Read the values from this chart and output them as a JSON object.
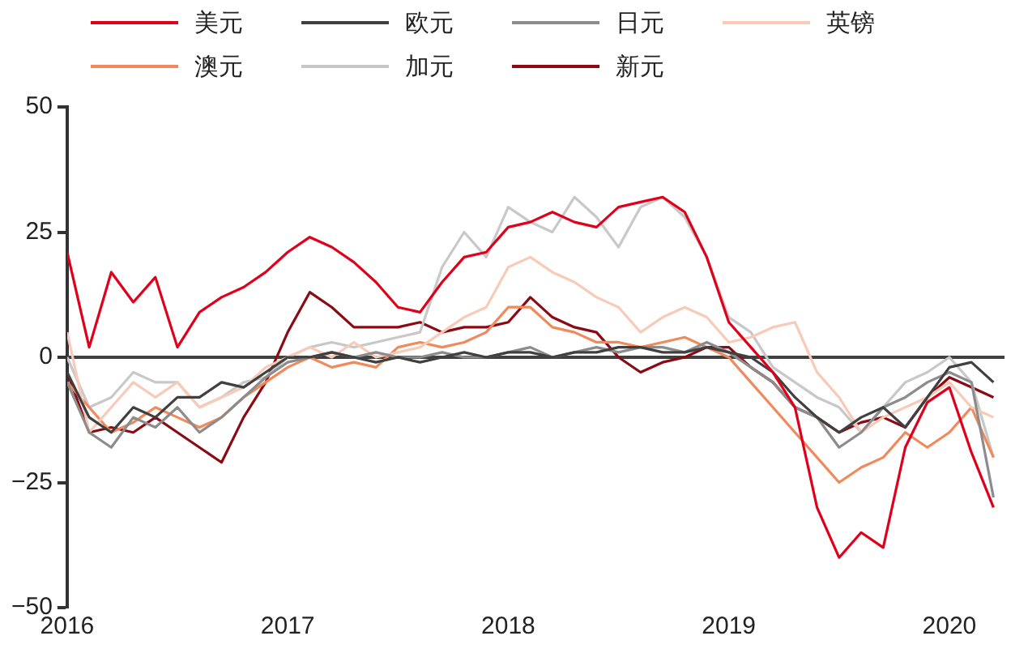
{
  "chart_data": {
    "type": "line",
    "legend": "top",
    "grid": false,
    "marker": "none",
    "line_style": "solid",
    "x": [
      2016.0,
      2016.1,
      2016.2,
      2016.3,
      2016.4,
      2016.5,
      2016.6,
      2016.7,
      2016.8,
      2016.9,
      2017.0,
      2017.1,
      2017.2,
      2017.3,
      2017.4,
      2017.5,
      2017.6,
      2017.7,
      2017.8,
      2017.9,
      2018.0,
      2018.1,
      2018.2,
      2018.3,
      2018.4,
      2018.5,
      2018.6,
      2018.7,
      2018.8,
      2018.9,
      2019.0,
      2019.1,
      2019.2,
      2019.3,
      2019.4,
      2019.5,
      2019.6,
      2019.7,
      2019.8,
      2019.9,
      2020.0,
      2020.1,
      2020.2
    ],
    "xlim": [
      2016,
      2020.25
    ],
    "xticks": [
      2016,
      2017,
      2018,
      2019,
      2020
    ],
    "ylim": [
      -50,
      50
    ],
    "yticks": [
      {
        "value": -50,
        "label": "−50"
      },
      {
        "value": -25,
        "label": "−25"
      },
      0,
      25,
      50
    ],
    "ref_lines": [
      {
        "axis": "y",
        "value": 0,
        "color": "#404040"
      }
    ],
    "series": [
      {
        "name": "美元",
        "color": "#e0001b",
        "values": [
          21,
          2,
          17,
          11,
          16,
          2,
          9,
          12,
          14,
          17,
          21,
          24,
          22,
          19,
          15,
          10,
          9,
          15,
          20,
          21,
          26,
          27,
          29,
          27,
          26,
          30,
          31,
          32,
          29,
          20,
          7,
          2,
          -3,
          -10,
          -30,
          -40,
          -35,
          -38,
          -18,
          -9,
          -6,
          -19,
          -30
        ]
      },
      {
        "name": "欧元",
        "color": "#404040",
        "values": [
          -3,
          -12,
          -15,
          -10,
          -12,
          -8,
          -8,
          -5,
          -6,
          -3,
          0,
          0,
          1,
          0,
          -1,
          0,
          -1,
          0,
          1,
          0,
          1,
          1,
          0,
          1,
          1,
          2,
          2,
          1,
          1,
          2,
          1,
          0,
          -3,
          -8,
          -12,
          -15,
          -12,
          -10,
          -14,
          -8,
          -2,
          -1,
          -5
        ]
      },
      {
        "name": "日元",
        "color": "#8c8c8c",
        "values": [
          -5,
          -15,
          -18,
          -12,
          -14,
          -10,
          -15,
          -12,
          -8,
          -4,
          -1,
          0,
          1,
          0,
          1,
          0,
          0,
          1,
          0,
          0,
          1,
          2,
          0,
          1,
          2,
          1,
          2,
          2,
          1,
          3,
          1,
          -2,
          -5,
          -10,
          -12,
          -18,
          -15,
          -10,
          -8,
          -5,
          -3,
          -5,
          -28
        ]
      },
      {
        "name": "英镑",
        "color": "#f8cbb8",
        "values": [
          5,
          -15,
          -10,
          -5,
          -8,
          -5,
          -10,
          -8,
          -6,
          -2,
          0,
          2,
          0,
          3,
          0,
          1,
          2,
          5,
          8,
          10,
          18,
          20,
          17,
          15,
          12,
          10,
          5,
          8,
          10,
          8,
          3,
          4,
          6,
          7,
          -3,
          -8,
          -15,
          -12,
          -10,
          -8,
          -5,
          -10,
          -12
        ]
      },
      {
        "name": "澳元",
        "color": "#f08a5d",
        "values": [
          -5,
          -10,
          -15,
          -13,
          -10,
          -12,
          -14,
          -12,
          -8,
          -5,
          -2,
          0,
          -2,
          -1,
          -2,
          2,
          3,
          2,
          3,
          5,
          10,
          10,
          6,
          5,
          3,
          3,
          2,
          3,
          4,
          2,
          0,
          -5,
          -10,
          -15,
          -20,
          -25,
          -22,
          -20,
          -15,
          -18,
          -15,
          -10,
          -20
        ]
      },
      {
        "name": "加元",
        "color": "#c8c8c8",
        "values": [
          0,
          -10,
          -8,
          -3,
          -5,
          -5,
          -10,
          -8,
          -5,
          -4,
          0,
          2,
          3,
          2,
          3,
          4,
          5,
          18,
          25,
          20,
          30,
          27,
          25,
          32,
          28,
          22,
          30,
          32,
          28,
          20,
          8,
          5,
          -2,
          -5,
          -8,
          -10,
          -15,
          -10,
          -5,
          -3,
          0,
          -5,
          -20
        ]
      },
      {
        "name": "新元",
        "color": "#8b0a14",
        "values": [
          -3,
          -15,
          -14,
          -15,
          -12,
          -15,
          -18,
          -21,
          -12,
          -5,
          5,
          13,
          10,
          6,
          6,
          6,
          7,
          5,
          6,
          6,
          7,
          12,
          8,
          6,
          5,
          0,
          -3,
          -1,
          0,
          2,
          2,
          -2,
          -5,
          -10,
          -12,
          -15,
          -13,
          -12,
          -14,
          -8,
          -4,
          -6,
          -8
        ]
      }
    ]
  }
}
